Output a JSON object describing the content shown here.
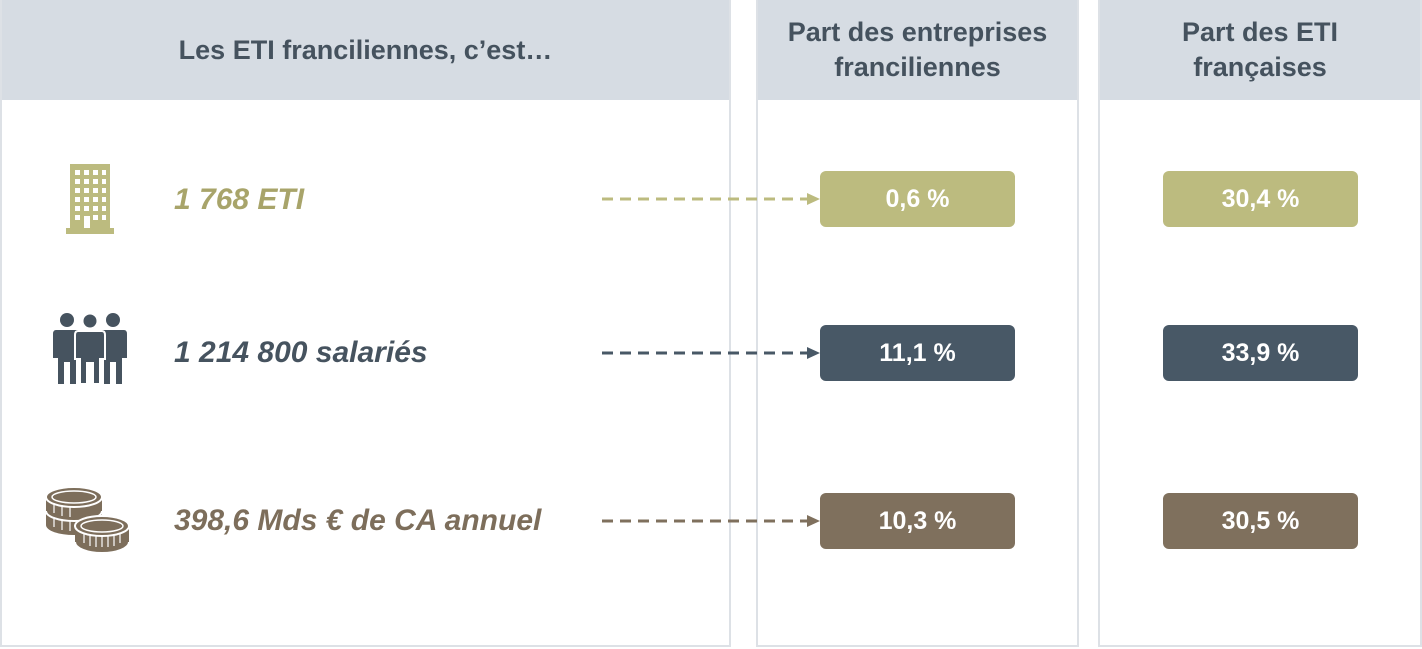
{
  "headers": {
    "col1": "Les ETI franciliennes, c’est…",
    "col2_line1": "Part des entreprises",
    "col2_line2": "franciliennes",
    "col3_line1": "Part des ETI",
    "col3_line2": "françaises"
  },
  "rows": [
    {
      "icon": "building-icon",
      "label": "1 768 ETI",
      "share_idf": "0,6 %",
      "share_fr": "30,4 %",
      "color": "#bcbb7f"
    },
    {
      "icon": "people-icon",
      "label": "1 214 800 salariés",
      "share_idf": "11,1 %",
      "share_fr": "33,9 %",
      "color": "#485866"
    },
    {
      "icon": "coins-icon",
      "label": "398,6 Mds € de CA annuel",
      "share_idf": "10,3 %",
      "share_fr": "30,5 %",
      "color": "#7f705d"
    }
  ]
}
